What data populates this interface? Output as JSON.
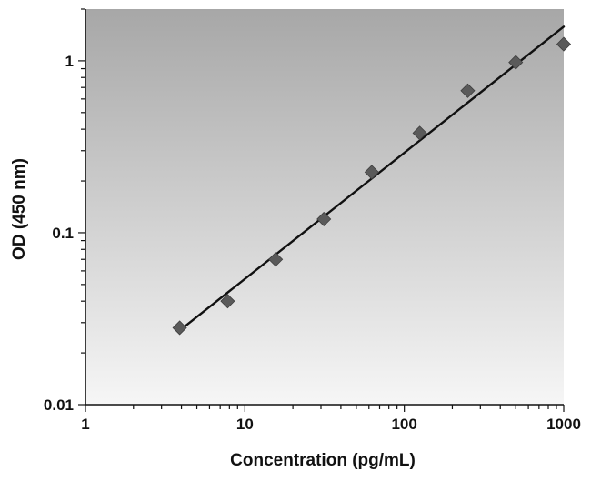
{
  "chart_data": {
    "type": "scatter",
    "title": "",
    "xlabel": "Concentration (pg/mL)",
    "ylabel": "OD (450 nm)",
    "xscale": "log",
    "yscale": "log",
    "xlim": [
      1,
      1000
    ],
    "ylim": [
      0.01,
      2
    ],
    "xticks": [
      {
        "value": 1,
        "label": "1"
      },
      {
        "value": 10,
        "label": "10"
      },
      {
        "value": 100,
        "label": "100"
      },
      {
        "value": 1000,
        "label": "1000"
      }
    ],
    "yticks": [
      {
        "value": 0.01,
        "label": "0.01"
      },
      {
        "value": 0.1,
        "label": "0.1"
      },
      {
        "value": 1,
        "label": "1"
      }
    ],
    "grid": false,
    "legend": "none",
    "series": [
      {
        "type": "scatter",
        "marker": "diamond",
        "x": [
          3.9,
          7.8,
          15.6,
          31.3,
          62.5,
          125,
          250,
          500,
          1000
        ],
        "y": [
          0.028,
          0.04,
          0.07,
          0.12,
          0.225,
          0.38,
          0.67,
          0.98,
          1.25
        ]
      },
      {
        "type": "line",
        "x": [
          3.9,
          1000
        ],
        "y": [
          0.027,
          1.58
        ]
      }
    ],
    "colors": {
      "marker": "#5a5a5a",
      "line": "#111111",
      "axis": "#111111",
      "plot_bg_top": "#a7a7a7",
      "plot_bg_bottom": "#f6f6f6"
    }
  }
}
